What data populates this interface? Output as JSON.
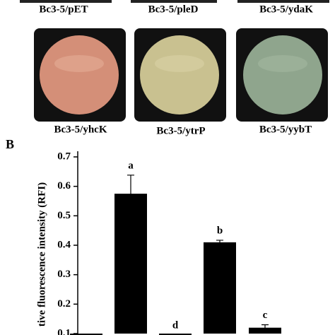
{
  "panels": {
    "top_row_labels": [
      "Bc3-5/pET",
      "Bc3-5/pleD",
      "Bc3-5/ydaK"
    ],
    "bottom_row_labels": [
      "Bc3-5/yhcK",
      "Bc3-5/ytrP",
      "Bc3-5/yybT"
    ]
  },
  "panel_label": "B",
  "chart_data": {
    "type": "bar",
    "y_label": "tive fluorescence intensity (RFI)",
    "categories": [
      null,
      null,
      null,
      null,
      null
    ],
    "values": [
      0.09,
      0.575,
      0.09,
      0.41,
      0.12
    ],
    "errors": [
      0.005,
      0.063,
      0.005,
      0.007,
      0.01
    ],
    "bar_labels": [
      null,
      "a",
      "d",
      "b",
      "c"
    ],
    "color": "#000000",
    "ylim": [
      0.1,
      0.7
    ],
    "yticks": [
      0.1,
      0.2,
      0.3,
      0.4,
      0.5,
      0.6,
      0.7
    ]
  }
}
